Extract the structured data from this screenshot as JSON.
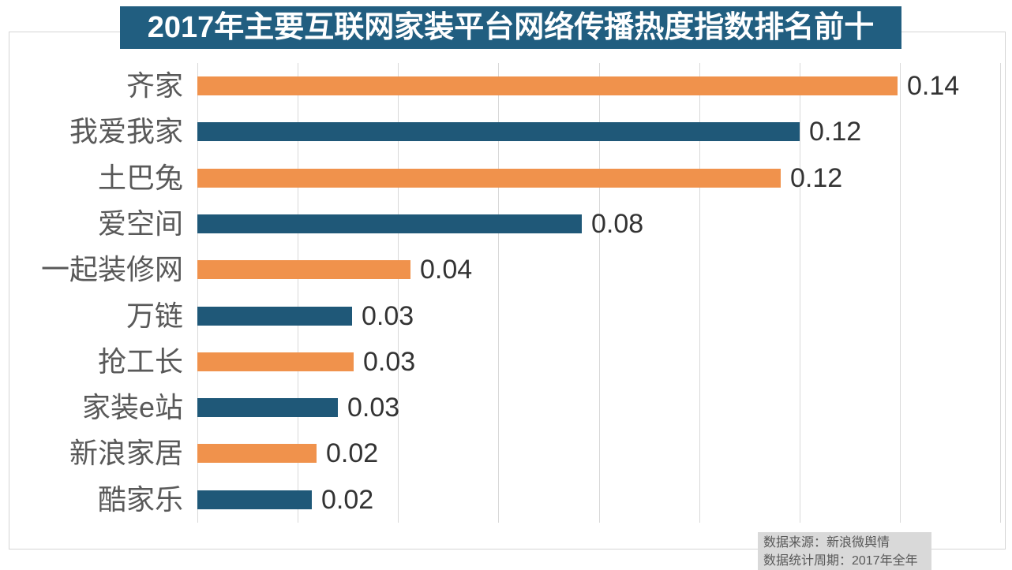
{
  "title": "2017年主要互联网家装平台网络传播热度指数排名前十",
  "chart_data": {
    "type": "bar",
    "orientation": "horizontal",
    "title": "2017年主要互联网家装平台网络传播热度指数排名前十",
    "categories": [
      "齐家",
      "我爱我家",
      "土巴兔",
      "爱空间",
      "一起装修网",
      "万链",
      "抢工长",
      "家装e站",
      "新浪家居",
      "酷家乐"
    ],
    "values": [
      0.14,
      0.12,
      0.12,
      0.08,
      0.04,
      0.03,
      0.03,
      0.03,
      0.02,
      0.02
    ],
    "value_labels": [
      "0.14",
      "0.12",
      "0.12",
      "0.08",
      "0.04",
      "0.03",
      "0.03",
      "0.03",
      "0.02",
      "0.02"
    ],
    "bar_lengths_precise": [
      0.1395,
      0.12,
      0.1163,
      0.0766,
      0.0425,
      0.0308,
      0.0312,
      0.028,
      0.0238,
      0.0228
    ],
    "xlim": [
      0,
      0.16
    ],
    "grid_interval": 0.02,
    "grid": true,
    "x_tick_labels_visible": false,
    "legend": null,
    "bar_color_pattern": [
      "orange",
      "blue"
    ],
    "colors": {
      "orange": "#F0924C",
      "blue": "#1F5878"
    }
  },
  "footer": {
    "source_line": "数据来源：新浪微舆情",
    "period_line": "数据统计周期：2017年全年"
  },
  "theme": {
    "title_bg": "#215E80",
    "title_text": "#FFFFFF",
    "category_text": "#595959",
    "value_text": "#333333",
    "grid_line": "#D9D9D9",
    "border": "#D5D5D5",
    "footer_bg": "#D9D9D9",
    "footer_text": "#595959",
    "background": "#FFFFFF"
  }
}
